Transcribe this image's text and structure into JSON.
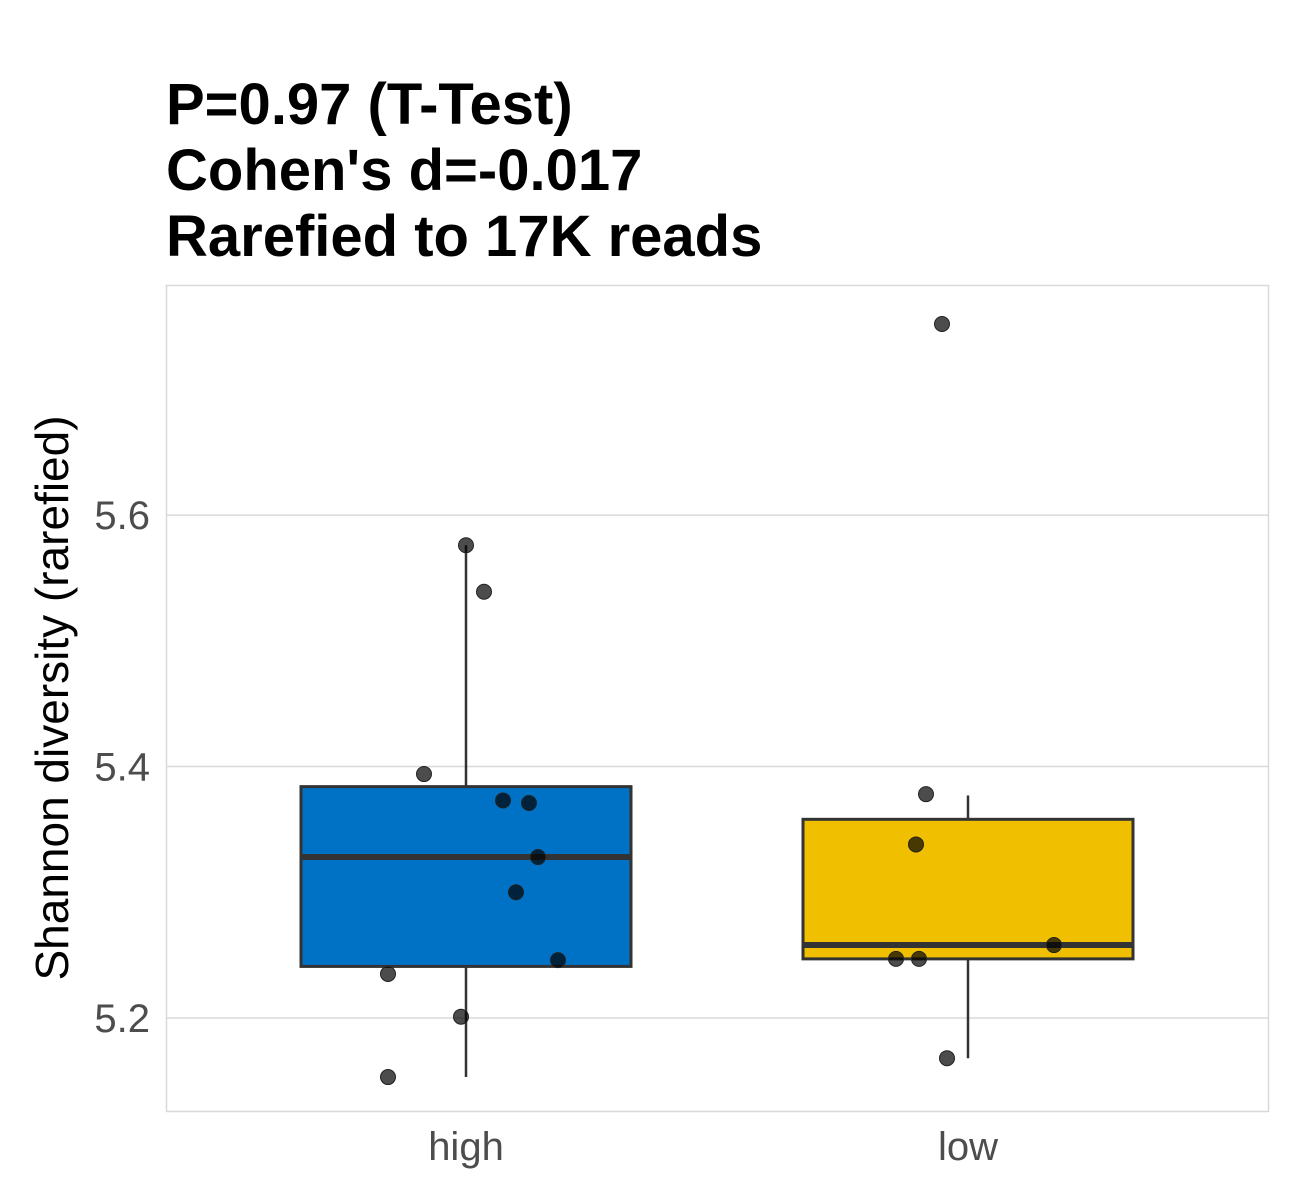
{
  "chart_data": {
    "type": "box",
    "title_lines": [
      "P=0.97 (T-Test)",
      "Cohen's d=-0.017",
      "Rarefied to 17K reads"
    ],
    "xlabel": "",
    "ylabel": "Shannon diversity (rarefied)",
    "ylim": [
      5.126,
      5.783
    ],
    "yticks": [
      5.2,
      5.4,
      5.6
    ],
    "ytick_labels": [
      "5.2",
      "5.4",
      "5.6"
    ],
    "grid": true,
    "categories": [
      "high",
      "low"
    ],
    "boxes": [
      {
        "name": "high",
        "color": "#0072C6",
        "whisker_low": 5.153,
        "q1": 5.241,
        "median": 5.328,
        "q3": 5.384,
        "whisker_high": 5.576,
        "points": [
          5.576,
          5.539,
          5.394,
          5.373,
          5.371,
          5.328,
          5.3,
          5.246,
          5.235,
          5.201,
          5.153
        ]
      },
      {
        "name": "low",
        "color": "#F0C000",
        "whisker_low": 5.168,
        "q1": 5.247,
        "median": 5.258,
        "q3": 5.358,
        "whisker_high": 5.377,
        "points": [
          5.752,
          5.378,
          5.338,
          5.258,
          5.247,
          5.247,
          5.168
        ]
      }
    ]
  }
}
